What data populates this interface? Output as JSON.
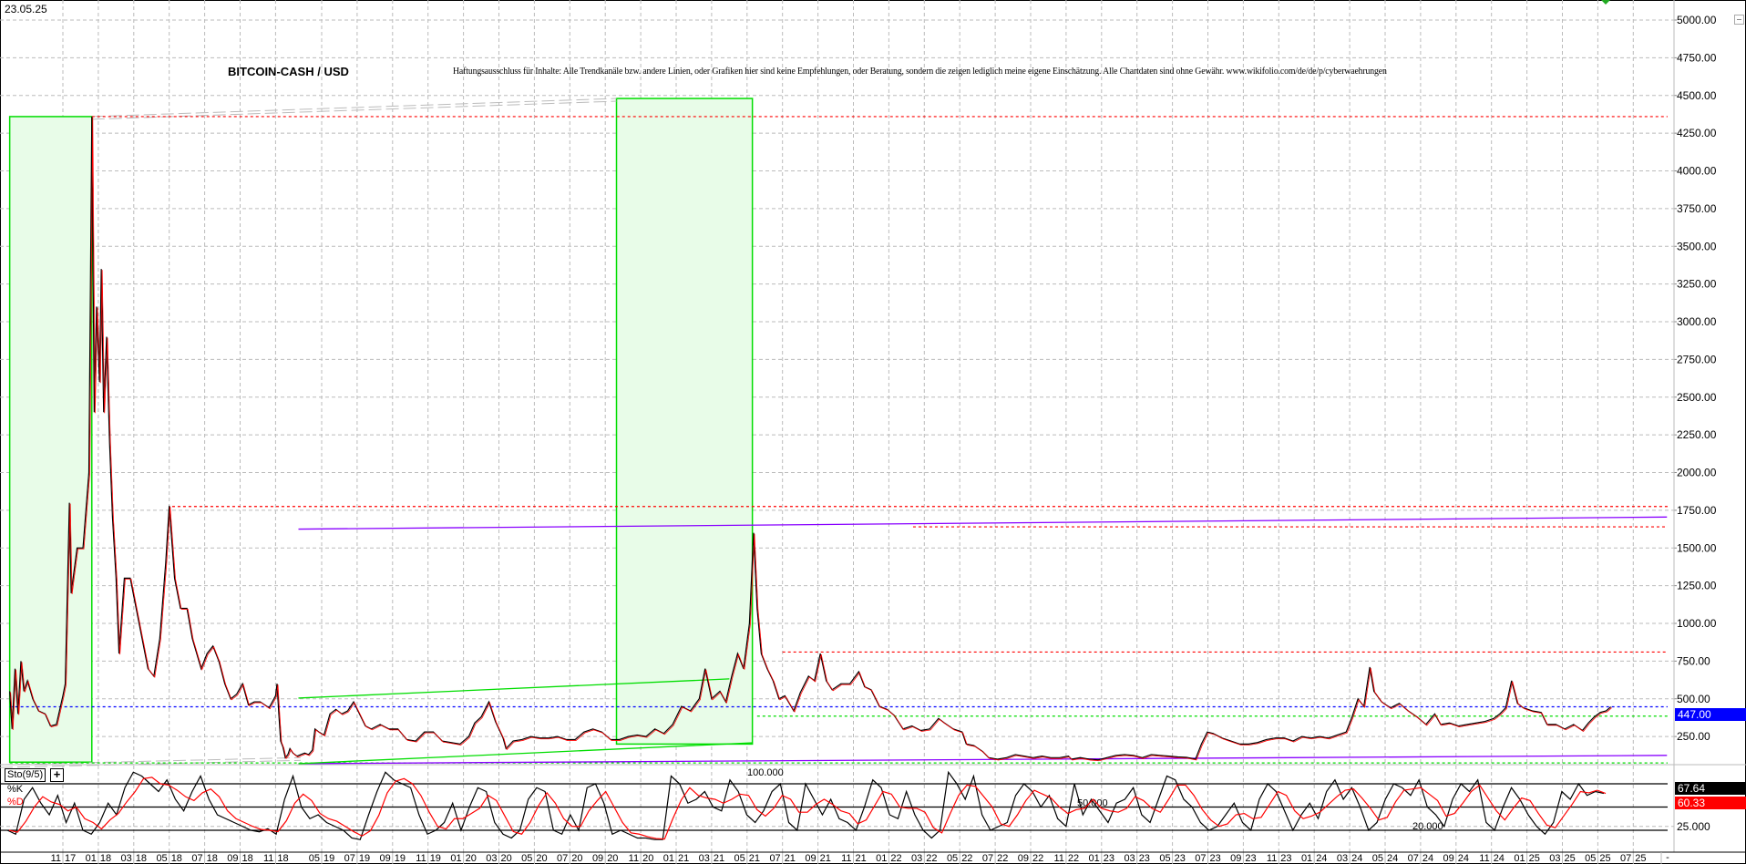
{
  "header": {
    "date": "23.05.25",
    "title": "BITCOIN-CASH / USD",
    "disclaimer": "Haftungsausschluss für Inhalte: Alle Trendkanäle bzw. andere Linien, oder Grafiken hier sind keine Empfehlungen, oder Beratung, sondern die zeigen lediglich meine eigene Einschätzung. Alle Chartdaten sind ohne Gewähr.  www.wikifolio.com/de/de/p/cyberwaehrungen"
  },
  "indicator": {
    "name": "Sto(9/5)",
    "plus": "+",
    "k_label": "%K",
    "d_label": "%D",
    "k_value": "67.64",
    "d_value": "60.33",
    "level_labels": [
      "100.000",
      "50.000",
      "20.000"
    ],
    "axis_label": "25.000"
  },
  "axis_footer": "-",
  "colors": {
    "price": "#000000",
    "close_line": "#ff0000",
    "last_price_box": "#0000ff",
    "k_box": "#000000",
    "d_box": "#ff0000",
    "support": "#00dd00",
    "resistance": "#ff0000",
    "trend": "#8800ff",
    "zone_fill": "#e8fce8"
  },
  "chart_data": {
    "type": "line",
    "y_ticks": [
      "250.00",
      "500.00",
      "750.00",
      "1000.00",
      "1250.00",
      "1500.00",
      "1750.00",
      "2000.00",
      "2250.00",
      "2500.00",
      "2750.00",
      "3000.00",
      "3250.00",
      "3500.00",
      "3750.00",
      "4000.00",
      "4250.00",
      "4500.00",
      "4750.00",
      "5000.00"
    ],
    "ylim": [
      0,
      5000
    ],
    "x_ticks": [
      "11 17",
      "01 18",
      "03 18",
      "05 18",
      "07 18",
      "09 18",
      "11 18",
      "05 19",
      "07 19",
      "09 19",
      "11 19",
      "01 20",
      "03 20",
      "05 20",
      "07 20",
      "09 20",
      "11 20",
      "01 21",
      "03 21",
      "05 21",
      "07 21",
      "09 21",
      "11 21",
      "01 22",
      "03 22",
      "05 22",
      "07 22",
      "09 22",
      "11 22",
      "01 23",
      "03 23",
      "05 23",
      "07 23",
      "09 23",
      "11 23",
      "01 24",
      "03 24",
      "05 24",
      "07 24",
      "09 24",
      "11 24",
      "01 25",
      "03 25",
      "05 25",
      "07 25"
    ],
    "x_tick_dates": [
      "2017-11-01",
      "2018-01-01",
      "2018-03-01",
      "2018-05-01",
      "2018-07-01",
      "2018-09-01",
      "2018-11-01",
      "2019-05-01",
      "2019-07-01",
      "2019-09-01",
      "2019-11-01",
      "2020-01-01",
      "2020-03-01",
      "2020-05-01",
      "2020-07-01",
      "2020-09-01",
      "2020-11-01",
      "2021-01-01",
      "2021-03-01",
      "2021-05-01",
      "2021-07-01",
      "2021-09-01",
      "2021-11-01",
      "2022-01-01",
      "2022-03-01",
      "2022-05-01",
      "2022-07-01",
      "2022-09-01",
      "2022-11-01",
      "2023-01-01",
      "2023-03-01",
      "2023-05-01",
      "2023-07-01",
      "2023-09-01",
      "2023-11-01",
      "2024-01-01",
      "2024-03-01",
      "2024-05-01",
      "2024-07-01",
      "2024-09-01",
      "2024-11-01",
      "2025-01-01",
      "2025-03-01",
      "2025-05-01",
      "2025-07-01"
    ],
    "last_price": "447.00",
    "price": [
      [
        "2017-08-01",
        550
      ],
      [
        "2017-08-05",
        300
      ],
      [
        "2017-08-10",
        700
      ],
      [
        "2017-08-15",
        400
      ],
      [
        "2017-08-20",
        750
      ],
      [
        "2017-08-25",
        550
      ],
      [
        "2017-09-01",
        620
      ],
      [
        "2017-09-10",
        500
      ],
      [
        "2017-09-20",
        420
      ],
      [
        "2017-10-01",
        400
      ],
      [
        "2017-10-10",
        320
      ],
      [
        "2017-10-20",
        330
      ],
      [
        "2017-11-01",
        520
      ],
      [
        "2017-11-05",
        600
      ],
      [
        "2017-11-12",
        1800
      ],
      [
        "2017-11-15",
        1200
      ],
      [
        "2017-11-25",
        1500
      ],
      [
        "2017-12-05",
        1500
      ],
      [
        "2017-12-15",
        2000
      ],
      [
        "2017-12-20",
        4360
      ],
      [
        "2017-12-24",
        2400
      ],
      [
        "2017-12-28",
        3100
      ],
      [
        "2018-01-03",
        2600
      ],
      [
        "2018-01-06",
        3350
      ],
      [
        "2018-01-10",
        2400
      ],
      [
        "2018-01-15",
        2900
      ],
      [
        "2018-01-20",
        2200
      ],
      [
        "2018-01-25",
        1700
      ],
      [
        "2018-02-01",
        1300
      ],
      [
        "2018-02-06",
        800
      ],
      [
        "2018-02-15",
        1300
      ],
      [
        "2018-02-25",
        1300
      ],
      [
        "2018-03-05",
        1100
      ],
      [
        "2018-03-15",
        900
      ],
      [
        "2018-03-25",
        700
      ],
      [
        "2018-04-05",
        650
      ],
      [
        "2018-04-15",
        900
      ],
      [
        "2018-04-25",
        1400
      ],
      [
        "2018-05-01",
        1780
      ],
      [
        "2018-05-10",
        1300
      ],
      [
        "2018-05-20",
        1100
      ],
      [
        "2018-06-01",
        1100
      ],
      [
        "2018-06-10",
        900
      ],
      [
        "2018-06-25",
        700
      ],
      [
        "2018-07-05",
        800
      ],
      [
        "2018-07-15",
        850
      ],
      [
        "2018-07-25",
        750
      ],
      [
        "2018-08-05",
        600
      ],
      [
        "2018-08-15",
        500
      ],
      [
        "2018-08-25",
        530
      ],
      [
        "2018-09-05",
        600
      ],
      [
        "2018-09-15",
        460
      ],
      [
        "2018-09-25",
        480
      ],
      [
        "2018-10-05",
        480
      ],
      [
        "2018-10-20",
        440
      ],
      [
        "2018-11-01",
        520
      ],
      [
        "2018-11-08",
        600
      ],
      [
        "2018-11-15",
        400
      ],
      [
        "2018-11-22",
        220
      ],
      [
        "2018-12-01",
        180
      ],
      [
        "2018-12-10",
        110
      ],
      [
        "2018-12-20",
        130
      ],
      [
        "2018-12-28",
        170
      ],
      [
        "2019-01-10",
        140
      ],
      [
        "2019-01-25",
        120
      ],
      [
        "2019-02-10",
        130
      ],
      [
        "2019-02-25",
        140
      ],
      [
        "2019-03-10",
        130
      ],
      [
        "2019-03-25",
        160
      ],
      [
        "2019-04-05",
        300
      ],
      [
        "2019-04-20",
        280
      ],
      [
        "2019-05-05",
        260
      ],
      [
        "2019-05-15",
        400
      ],
      [
        "2019-05-25",
        430
      ],
      [
        "2019-06-05",
        400
      ],
      [
        "2019-06-15",
        420
      ],
      [
        "2019-06-25",
        480
      ],
      [
        "2019-07-05",
        400
      ],
      [
        "2019-07-15",
        320
      ],
      [
        "2019-07-25",
        300
      ],
      [
        "2019-08-10",
        330
      ],
      [
        "2019-08-25",
        300
      ],
      [
        "2019-09-10",
        300
      ],
      [
        "2019-09-25",
        230
      ],
      [
        "2019-10-10",
        220
      ],
      [
        "2019-10-25",
        280
      ],
      [
        "2019-11-10",
        280
      ],
      [
        "2019-11-25",
        220
      ],
      [
        "2019-12-10",
        210
      ],
      [
        "2019-12-25",
        200
      ],
      [
        "2020-01-10",
        250
      ],
      [
        "2020-01-20",
        340
      ],
      [
        "2020-02-01",
        380
      ],
      [
        "2020-02-14",
        480
      ],
      [
        "2020-02-25",
        350
      ],
      [
        "2020-03-08",
        240
      ],
      [
        "2020-03-13",
        170
      ],
      [
        "2020-03-25",
        220
      ],
      [
        "2020-04-10",
        230
      ],
      [
        "2020-04-25",
        250
      ],
      [
        "2020-05-10",
        240
      ],
      [
        "2020-05-25",
        240
      ],
      [
        "2020-06-10",
        250
      ],
      [
        "2020-06-25",
        230
      ],
      [
        "2020-07-10",
        230
      ],
      [
        "2020-07-25",
        280
      ],
      [
        "2020-08-10",
        300
      ],
      [
        "2020-08-25",
        280
      ],
      [
        "2020-09-10",
        230
      ],
      [
        "2020-09-25",
        230
      ],
      [
        "2020-10-10",
        250
      ],
      [
        "2020-10-25",
        260
      ],
      [
        "2020-11-10",
        250
      ],
      [
        "2020-11-25",
        300
      ],
      [
        "2020-12-10",
        270
      ],
      [
        "2020-12-25",
        330
      ],
      [
        "2021-01-10",
        450
      ],
      [
        "2021-01-25",
        420
      ],
      [
        "2021-02-10",
        500
      ],
      [
        "2021-02-20",
        700
      ],
      [
        "2021-03-01",
        500
      ],
      [
        "2021-03-15",
        550
      ],
      [
        "2021-03-25",
        480
      ],
      [
        "2021-04-05",
        650
      ],
      [
        "2021-04-15",
        800
      ],
      [
        "2021-04-25",
        700
      ],
      [
        "2021-05-05",
        1000
      ],
      [
        "2021-05-12",
        1600
      ],
      [
        "2021-05-18",
        1100
      ],
      [
        "2021-05-25",
        800
      ],
      [
        "2021-06-05",
        700
      ],
      [
        "2021-06-15",
        620
      ],
      [
        "2021-06-25",
        500
      ],
      [
        "2021-07-05",
        520
      ],
      [
        "2021-07-20",
        420
      ],
      [
        "2021-08-01",
        540
      ],
      [
        "2021-08-15",
        650
      ],
      [
        "2021-08-25",
        620
      ],
      [
        "2021-09-05",
        800
      ],
      [
        "2021-09-15",
        620
      ],
      [
        "2021-09-25",
        560
      ],
      [
        "2021-10-10",
        600
      ],
      [
        "2021-10-25",
        600
      ],
      [
        "2021-11-10",
        680
      ],
      [
        "2021-11-20",
        580
      ],
      [
        "2021-12-01",
        560
      ],
      [
        "2021-12-15",
        450
      ],
      [
        "2021-12-28",
        430
      ],
      [
        "2022-01-10",
        390
      ],
      [
        "2022-01-25",
        300
      ],
      [
        "2022-02-10",
        320
      ],
      [
        "2022-02-25",
        290
      ],
      [
        "2022-03-10",
        300
      ],
      [
        "2022-03-25",
        370
      ],
      [
        "2022-04-05",
        340
      ],
      [
        "2022-04-20",
        300
      ],
      [
        "2022-05-05",
        280
      ],
      [
        "2022-05-12",
        200
      ],
      [
        "2022-05-25",
        190
      ],
      [
        "2022-06-10",
        150
      ],
      [
        "2022-06-20",
        110
      ],
      [
        "2022-07-05",
        100
      ],
      [
        "2022-07-20",
        110
      ],
      [
        "2022-08-05",
        130
      ],
      [
        "2022-08-20",
        120
      ],
      [
        "2022-09-05",
        110
      ],
      [
        "2022-09-20",
        120
      ],
      [
        "2022-10-05",
        110
      ],
      [
        "2022-10-20",
        110
      ],
      [
        "2022-11-05",
        120
      ],
      [
        "2022-11-10",
        100
      ],
      [
        "2022-11-25",
        110
      ],
      [
        "2022-12-10",
        100
      ],
      [
        "2022-12-25",
        95
      ],
      [
        "2023-01-10",
        110
      ],
      [
        "2023-01-25",
        125
      ],
      [
        "2023-02-10",
        130
      ],
      [
        "2023-02-25",
        125
      ],
      [
        "2023-03-10",
        110
      ],
      [
        "2023-03-25",
        130
      ],
      [
        "2023-04-10",
        125
      ],
      [
        "2023-04-25",
        120
      ],
      [
        "2023-05-10",
        115
      ],
      [
        "2023-05-25",
        112
      ],
      [
        "2023-06-10",
        100
      ],
      [
        "2023-06-20",
        200
      ],
      [
        "2023-06-30",
        280
      ],
      [
        "2023-07-10",
        270
      ],
      [
        "2023-07-25",
        240
      ],
      [
        "2023-08-10",
        220
      ],
      [
        "2023-08-25",
        200
      ],
      [
        "2023-09-10",
        200
      ],
      [
        "2023-09-25",
        210
      ],
      [
        "2023-10-10",
        230
      ],
      [
        "2023-10-25",
        240
      ],
      [
        "2023-11-10",
        240
      ],
      [
        "2023-11-25",
        220
      ],
      [
        "2023-12-10",
        250
      ],
      [
        "2023-12-25",
        240
      ],
      [
        "2024-01-10",
        250
      ],
      [
        "2024-01-25",
        240
      ],
      [
        "2024-02-10",
        260
      ],
      [
        "2024-02-25",
        280
      ],
      [
        "2024-03-05",
        380
      ],
      [
        "2024-03-15",
        500
      ],
      [
        "2024-03-25",
        450
      ],
      [
        "2024-04-05",
        710
      ],
      [
        "2024-04-12",
        550
      ],
      [
        "2024-04-25",
        480
      ],
      [
        "2024-05-10",
        440
      ],
      [
        "2024-05-25",
        470
      ],
      [
        "2024-06-10",
        420
      ],
      [
        "2024-06-25",
        380
      ],
      [
        "2024-07-10",
        330
      ],
      [
        "2024-07-25",
        400
      ],
      [
        "2024-08-05",
        330
      ],
      [
        "2024-08-20",
        340
      ],
      [
        "2024-09-05",
        320
      ],
      [
        "2024-09-20",
        330
      ],
      [
        "2024-10-05",
        340
      ],
      [
        "2024-10-20",
        350
      ],
      [
        "2024-11-05",
        370
      ],
      [
        "2024-11-15",
        400
      ],
      [
        "2024-11-25",
        440
      ],
      [
        "2024-12-05",
        620
      ],
      [
        "2024-12-15",
        470
      ],
      [
        "2024-12-25",
        440
      ],
      [
        "2025-01-10",
        420
      ],
      [
        "2025-01-25",
        410
      ],
      [
        "2025-02-05",
        330
      ],
      [
        "2025-02-20",
        330
      ],
      [
        "2025-03-05",
        300
      ],
      [
        "2025-03-20",
        330
      ],
      [
        "2025-04-05",
        290
      ],
      [
        "2025-04-15",
        340
      ],
      [
        "2025-04-25",
        380
      ],
      [
        "2025-05-05",
        410
      ],
      [
        "2025-05-15",
        420
      ],
      [
        "2025-05-23",
        447
      ]
    ],
    "horizontal_levels": [
      {
        "price": 4360,
        "from": "2017-12-20",
        "color": "#ff0000",
        "style": "dotted"
      },
      {
        "price": 1775,
        "from": "2018-05-06",
        "color": "#ff0000",
        "style": "dotted"
      },
      {
        "price": 1640,
        "from": "2022-02-12",
        "color": "#ff0000",
        "style": "dotted"
      },
      {
        "price": 810,
        "from": "2021-07-01",
        "color": "#ff0000",
        "style": "dotted"
      },
      {
        "price": 447,
        "from": "2017-08-01",
        "color": "#0000ff",
        "style": "dotted"
      },
      {
        "price": 385,
        "from": "2021-05-18",
        "color": "#00dd00",
        "style": "dotted"
      },
      {
        "price": 75,
        "from": "2017-08-01",
        "color": "#00dd00",
        "style": "dotted"
      }
    ],
    "trend_lines": [
      {
        "from": [
          "2019-02-01",
          1625
        ],
        "to": [
          "2025-08-28",
          1705
        ],
        "color": "#8800ff"
      },
      {
        "from": [
          "2019-02-01",
          70
        ],
        "to": [
          "2025-08-28",
          125
        ],
        "color": "#8800ff"
      },
      {
        "from": [
          "2019-02-01",
          505
        ],
        "to": [
          "2021-04-01",
          632
        ],
        "color": "#00dd00"
      },
      {
        "from": [
          "2019-02-01",
          70
        ],
        "to": [
          "2021-05-10",
          208
        ],
        "color": "#00dd00"
      }
    ],
    "zones": [
      {
        "from": "2017-08-01",
        "to": "2017-12-20",
        "low": 80,
        "high": 4360
      },
      {
        "from": "2020-09-20",
        "to": "2021-05-10",
        "low": 200,
        "high": 4480
      }
    ],
    "stochastic": {
      "levels": [
        80,
        50,
        20
      ],
      "ylim": [
        0,
        100
      ],
      "k": [
        20,
        15,
        60,
        75,
        55,
        40,
        65,
        30,
        55,
        20,
        15,
        30,
        55,
        40,
        75,
        95,
        90,
        80,
        70,
        85,
        60,
        45,
        70,
        90,
        60,
        40,
        35,
        30,
        25,
        20,
        18,
        22,
        15,
        60,
        90,
        50,
        35,
        40,
        30,
        25,
        20,
        10,
        8,
        40,
        70,
        95,
        85,
        80,
        75,
        40,
        15,
        20,
        30,
        55,
        20,
        50,
        75,
        70,
        30,
        15,
        10,
        20,
        60,
        75,
        70,
        20,
        15,
        40,
        20,
        75,
        80,
        55,
        15,
        20,
        15,
        10,
        10,
        8,
        8,
        90,
        80,
        55,
        60,
        70,
        50,
        45,
        85,
        70,
        40,
        30,
        45,
        70,
        80,
        30,
        20,
        80,
        60,
        40,
        60,
        35,
        30,
        20,
        50,
        85,
        75,
        40,
        35,
        70,
        40,
        20,
        10,
        20,
        95,
        80,
        60,
        90,
        40,
        20,
        25,
        30,
        65,
        80,
        70,
        50,
        65,
        35,
        25,
        80,
        40,
        60,
        45,
        30,
        55,
        60,
        75,
        40,
        30,
        60,
        90,
        85,
        60,
        50,
        30,
        20,
        25,
        40,
        55,
        30,
        20,
        60,
        80,
        70,
        45,
        20,
        40,
        55,
        35,
        70,
        85,
        60,
        75,
        50,
        20,
        30,
        60,
        80,
        75,
        65,
        85,
        50,
        40,
        25,
        60,
        80,
        70,
        85,
        30,
        20,
        50,
        75,
        60,
        40,
        25,
        15,
        30,
        70,
        60,
        80,
        65,
        70,
        67.64
      ]
    }
  }
}
